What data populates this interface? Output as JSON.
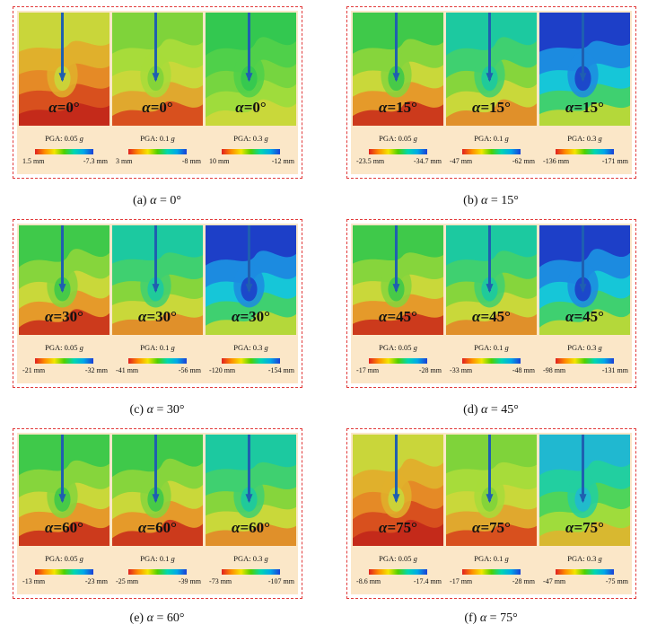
{
  "figures": [
    {
      "id": "a",
      "caption_prefix": "(a)",
      "caption_symbol": "α",
      "caption_value": "= 0°",
      "label_symbol": "α",
      "label_value": "=0°",
      "panels": [
        {
          "pga_label": "PGA: 0.05",
          "pga_unit": "g",
          "cbar_min": "1.5 mm",
          "cbar_max": "-7.3 mm",
          "scheme": "warm"
        },
        {
          "pga_label": "PGA: 0.1",
          "pga_unit": "g",
          "cbar_min": "3 mm",
          "cbar_max": "-8 mm",
          "scheme": "lime"
        },
        {
          "pga_label": "PGA: 0.3",
          "pga_unit": "g",
          "cbar_min": "10 mm",
          "cbar_max": "-12 mm",
          "scheme": "green"
        }
      ]
    },
    {
      "id": "b",
      "caption_prefix": "(b)",
      "caption_symbol": "α",
      "caption_value": "= 15°",
      "label_symbol": "α",
      "label_value": "=15°",
      "panels": [
        {
          "pga_label": "PGA: 0.05",
          "pga_unit": "g",
          "cbar_min": "-23.5 mm",
          "cbar_max": "-34.7 mm",
          "scheme": "greenwarm"
        },
        {
          "pga_label": "PGA: 0.1",
          "pga_unit": "g",
          "cbar_min": "-47 mm",
          "cbar_max": "-62 mm",
          "scheme": "teal"
        },
        {
          "pga_label": "PGA: 0.3",
          "pga_unit": "g",
          "cbar_min": "-136 mm",
          "cbar_max": "-171 mm",
          "scheme": "blue"
        }
      ]
    },
    {
      "id": "c",
      "caption_prefix": "(c)",
      "caption_symbol": "α",
      "caption_value": "= 30°",
      "label_symbol": "α",
      "label_value": "=30°",
      "panels": [
        {
          "pga_label": "PGA: 0.05",
          "pga_unit": "g",
          "cbar_min": "-21 mm",
          "cbar_max": "-32 mm",
          "scheme": "greenwarm"
        },
        {
          "pga_label": "PGA: 0.1",
          "pga_unit": "g",
          "cbar_min": "-41 mm",
          "cbar_max": "-56 mm",
          "scheme": "teal"
        },
        {
          "pga_label": "PGA: 0.3",
          "pga_unit": "g",
          "cbar_min": "-120 mm",
          "cbar_max": "-154 mm",
          "scheme": "blue"
        }
      ]
    },
    {
      "id": "d",
      "caption_prefix": "(d)",
      "caption_symbol": "α",
      "caption_value": "= 45°",
      "label_symbol": "α",
      "label_value": "=45°",
      "panels": [
        {
          "pga_label": "PGA: 0.05",
          "pga_unit": "g",
          "cbar_min": "-17 mm",
          "cbar_max": "-28 mm",
          "scheme": "greenwarm"
        },
        {
          "pga_label": "PGA: 0.1",
          "pga_unit": "g",
          "cbar_min": "-33 mm",
          "cbar_max": "-48 mm",
          "scheme": "teal"
        },
        {
          "pga_label": "PGA: 0.3",
          "pga_unit": "g",
          "cbar_min": "-98 mm",
          "cbar_max": "-131 mm",
          "scheme": "blue"
        }
      ]
    },
    {
      "id": "e",
      "caption_prefix": "(e)",
      "caption_symbol": "α",
      "caption_value": "= 60°",
      "label_symbol": "α",
      "label_value": "=60°",
      "panels": [
        {
          "pga_label": "PGA: 0.05",
          "pga_unit": "g",
          "cbar_min": "-13 mm",
          "cbar_max": "-23 mm",
          "scheme": "greenwarm"
        },
        {
          "pga_label": "PGA: 0.1",
          "pga_unit": "g",
          "cbar_min": "-25 mm",
          "cbar_max": "-39 mm",
          "scheme": "greenwarm"
        },
        {
          "pga_label": "PGA: 0.3",
          "pga_unit": "g",
          "cbar_min": "-73 mm",
          "cbar_max": "-107 mm",
          "scheme": "teal"
        }
      ]
    },
    {
      "id": "f",
      "caption_prefix": "(f)",
      "caption_symbol": "α",
      "caption_value": "= 75°",
      "label_symbol": "α",
      "label_value": "=75°",
      "panels": [
        {
          "pga_label": "PGA: 0.05",
          "pga_unit": "g",
          "cbar_min": "-8.6 mm",
          "cbar_max": "-17.4 mm",
          "scheme": "warm"
        },
        {
          "pga_label": "PGA: 0.1",
          "pga_unit": "g",
          "cbar_min": "-17 mm",
          "cbar_max": "-28 mm",
          "scheme": "lime"
        },
        {
          "pga_label": "PGA: 0.3",
          "pga_unit": "g",
          "cbar_min": "-47 mm",
          "cbar_max": "-75 mm",
          "scheme": "greenteal"
        }
      ]
    }
  ],
  "schemes": {
    "warm": [
      "#c9d63a",
      "#e0b02c",
      "#e58a26",
      "#d8501e",
      "#c42a1a"
    ],
    "lime": [
      "#7fd33a",
      "#a7dc3a",
      "#c9d83a",
      "#e0a82e",
      "#d8501e"
    ],
    "green": [
      "#33c850",
      "#4fd04a",
      "#76d540",
      "#9fdc3c",
      "#c9d83a"
    ],
    "greenwarm": [
      "#3fc94a",
      "#86d53c",
      "#c9d83a",
      "#e59a2a",
      "#cc3a1c"
    ],
    "teal": [
      "#1cc9a0",
      "#3fd070",
      "#86d53c",
      "#c9d83a",
      "#e0902a"
    ],
    "blue": [
      "#1d3fc8",
      "#1c8be0",
      "#16c6d8",
      "#3fd070",
      "#b4d83a"
    ],
    "greenteal": [
      "#20b8d0",
      "#22cfa0",
      "#4fd45a",
      "#9fdc3c",
      "#d8b830"
    ]
  },
  "pin_color": "#1f5fb0",
  "colorbar_colors": [
    "#e02020",
    "#ff8c00",
    "#f3e600",
    "#4fd000",
    "#00d7b0",
    "#00a8e8",
    "#1b3fd6"
  ]
}
